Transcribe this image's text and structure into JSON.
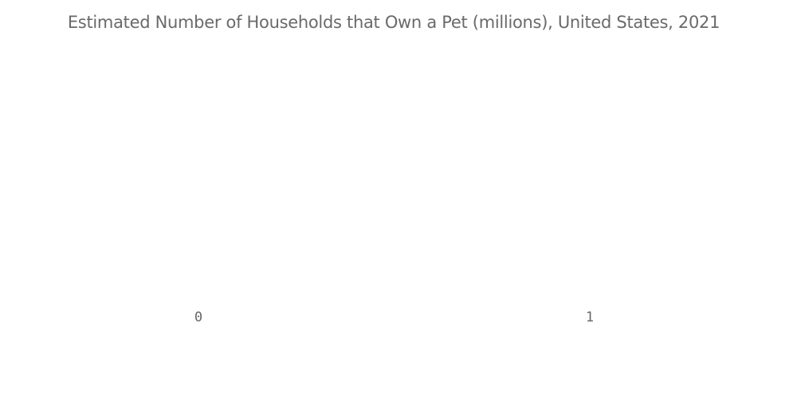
{
  "chart_data": {
    "type": "bar",
    "title": "Estimated Number of Households that Own a Pet (millions), United States, 2021",
    "categories": [],
    "values": [],
    "x_ticks": [
      "0",
      "1"
    ],
    "xlim": [
      0,
      1
    ],
    "grid": false,
    "legend": "none",
    "colors": {
      "title": "#6a6a6a",
      "tick": "#666666"
    }
  }
}
